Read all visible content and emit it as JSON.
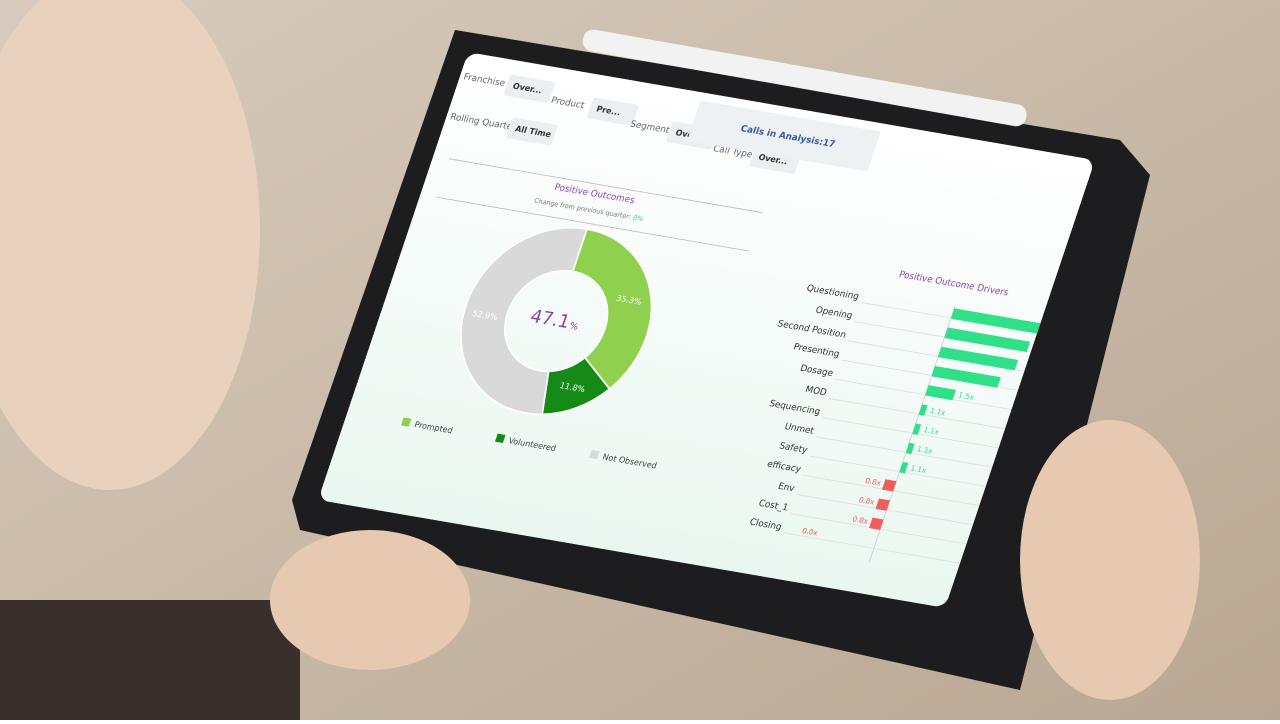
{
  "filters": [
    {
      "label": "Franchise",
      "value": "Over..."
    },
    {
      "label": "Product",
      "value": "Pre..."
    },
    {
      "label": "Segment",
      "value": "Over..."
    },
    {
      "label": "Call Type",
      "value": "Over..."
    },
    {
      "label": "Rolling Quarter",
      "value": "All Time"
    }
  ],
  "calls": {
    "label": "Calls in Analysis:",
    "value": "17"
  },
  "chart_data": [
    {
      "type": "donut",
      "title": "Positive Outcomes",
      "subtitle": "Change from previous quarter:",
      "change": "0%",
      "center_value": 47.1,
      "center_unit": "%",
      "categories": [
        "Prompted",
        "Volunteered",
        "Not Observed"
      ],
      "values": [
        35.3,
        11.8,
        52.9
      ],
      "value_labels": [
        "35.3%",
        "11.8%",
        "52.9%"
      ],
      "colors": [
        "#8fd14f",
        "#168a16",
        "#d9d9d9"
      ]
    },
    {
      "type": "hbar",
      "title": "Positive Outcome Drivers",
      "baseline": 1,
      "categories": [
        "Questioning",
        "Opening",
        "Second Position",
        "Presenting",
        "Dosage",
        "MOD",
        "Sequencing",
        "Unmet",
        "Safety",
        "efficacy",
        "Env",
        "Cost_1",
        "Closing"
      ],
      "values": [
        2.6,
        2.5,
        2.4,
        2.2,
        1.5,
        1.1,
        1.1,
        1.1,
        1.1,
        0.8,
        0.8,
        0.8,
        0.0
      ],
      "value_labels": [
        null,
        null,
        null,
        null,
        "1.5x",
        "1.1x",
        "1.1x",
        "1.1x",
        "1.1x",
        "0.8x",
        "0.8x",
        "0.8x",
        "0.0x"
      ],
      "up_color": "#2fe089",
      "down_color": "#f25c5c"
    }
  ]
}
